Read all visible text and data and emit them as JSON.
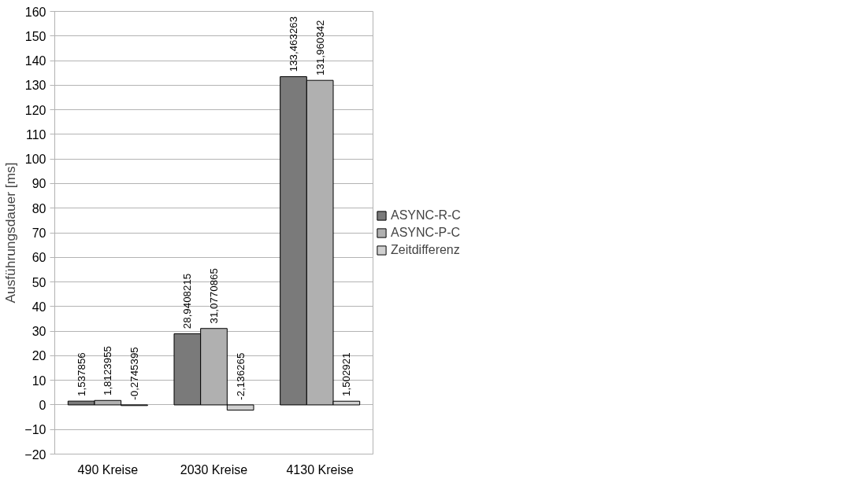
{
  "chart_data": {
    "type": "bar",
    "ylabel": "Ausführungsdauer [ms]",
    "categories": [
      "490 Kreise",
      "2030 Kreise",
      "4130 Kreise"
    ],
    "series": [
      {
        "name": "ASYNC-R-C",
        "color": "#7a7a7a",
        "values": [
          1.537856,
          28.9408215,
          133.463263
        ],
        "value_labels": [
          "1,537856",
          "28,9408215",
          "133,463263"
        ]
      },
      {
        "name": "ASYNC-P-C",
        "color": "#b0b0b0",
        "values": [
          1.8123955,
          31.0770865,
          131.960342
        ],
        "value_labels": [
          "1,8123955",
          "31,0770865",
          "131,960342"
        ]
      },
      {
        "name": "Zeitdifferenz",
        "color": "#d0d0d0",
        "values": [
          -0.2745395,
          -2.136265,
          1.502921
        ],
        "value_labels": [
          "-0,2745395",
          "-2,136265",
          "1,502921"
        ]
      }
    ],
    "ylim": [
      -20,
      160
    ],
    "yticks": [
      -20,
      -10,
      0,
      10,
      20,
      30,
      40,
      50,
      60,
      70,
      80,
      90,
      100,
      110,
      120,
      130,
      140,
      150,
      160
    ],
    "grid": "y",
    "legend": "right"
  }
}
